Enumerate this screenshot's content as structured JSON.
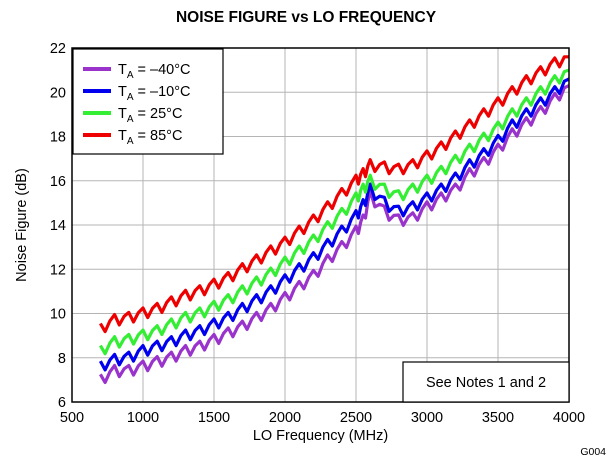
{
  "chart_data": {
    "type": "line",
    "title": "NOISE FIGURE vs LO FREQUENCY",
    "xlabel": "LO Frequency (MHz)",
    "ylabel": "Noise Figure (dB)",
    "xlim": [
      500,
      4000
    ],
    "ylim": [
      6,
      22
    ],
    "xticks": [
      500,
      1000,
      1500,
      2000,
      2500,
      3000,
      3500,
      4000
    ],
    "yticks": [
      6,
      8,
      10,
      12,
      14,
      16,
      18,
      20,
      22
    ],
    "grid": true,
    "legend_placement": "top-left",
    "annotation": "See Notes 1 and 2",
    "figure_code": "G004",
    "x": [
      700,
      800,
      900,
      1000,
      1100,
      1200,
      1300,
      1400,
      1500,
      1600,
      1700,
      1800,
      1900,
      2000,
      2100,
      2200,
      2300,
      2400,
      2500,
      2550,
      2600,
      2700,
      2800,
      2900,
      3000,
      3100,
      3200,
      3300,
      3400,
      3500,
      3600,
      3700,
      3800,
      3900,
      4000
    ],
    "series": [
      {
        "name_main": "T",
        "name_sub": "A",
        "name_rest": " = –40°C",
        "color": "#9933cc",
        "values": [
          7.0,
          7.4,
          7.4,
          7.6,
          7.8,
          8.0,
          8.3,
          8.5,
          8.8,
          9.1,
          9.4,
          9.8,
          10.2,
          10.7,
          11.2,
          11.7,
          12.4,
          13.0,
          13.7,
          14.2,
          15.3,
          14.6,
          14.2,
          14.3,
          14.8,
          15.2,
          15.6,
          16.3,
          16.8,
          17.4,
          18.1,
          18.6,
          19.1,
          19.7,
          20.3
        ]
      },
      {
        "name_main": "T",
        "name_sub": "A",
        "name_rest": " = –10°C",
        "color": "#0000ee",
        "values": [
          7.6,
          7.9,
          8.0,
          8.3,
          8.5,
          8.7,
          9.0,
          9.2,
          9.5,
          9.8,
          10.2,
          10.6,
          11.0,
          11.5,
          12.0,
          12.5,
          13.1,
          13.7,
          14.4,
          14.9,
          15.6,
          15.0,
          14.6,
          14.8,
          15.2,
          15.6,
          16.1,
          16.7,
          17.2,
          17.8,
          18.5,
          19.0,
          19.5,
          20.0,
          20.6
        ]
      },
      {
        "name_main": "T",
        "name_sub": "A",
        "name_rest": " = 25°C",
        "color": "#33ee33",
        "values": [
          8.3,
          8.7,
          8.8,
          9.0,
          9.2,
          9.5,
          9.8,
          10.0,
          10.3,
          10.6,
          11.0,
          11.4,
          11.8,
          12.3,
          12.8,
          13.3,
          13.9,
          14.5,
          15.2,
          15.6,
          16.0,
          15.6,
          15.3,
          15.6,
          16.0,
          16.4,
          16.9,
          17.4,
          17.9,
          18.4,
          19.0,
          19.5,
          20.0,
          20.5,
          21.0
        ]
      },
      {
        "name_main": "T",
        "name_sub": "A",
        "name_rest": " = 85°C",
        "color": "#ee0000",
        "values": [
          9.3,
          9.7,
          9.8,
          10.0,
          10.2,
          10.5,
          10.8,
          11.0,
          11.3,
          11.6,
          12.0,
          12.4,
          12.8,
          13.2,
          13.7,
          14.2,
          14.8,
          15.4,
          16.0,
          16.3,
          16.7,
          16.6,
          16.5,
          16.7,
          17.1,
          17.5,
          18.0,
          18.5,
          19.0,
          19.5,
          20.0,
          20.5,
          20.9,
          21.3,
          21.6
        ]
      }
    ]
  }
}
